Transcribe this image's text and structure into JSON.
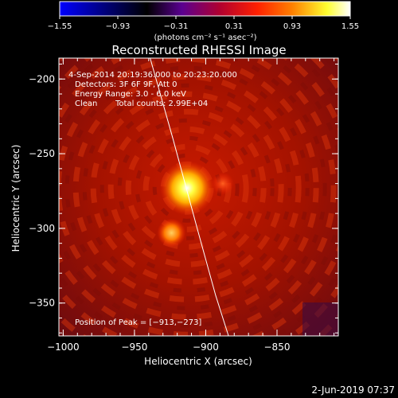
{
  "chart_data": {
    "type": "heatmap",
    "title": "Reconstructed RHESSI Image",
    "xlabel": "Heliocentric X (arcsec)",
    "ylabel": "Heliocentric Y (arcsec)",
    "xlim": [
      -1003,
      -807
    ],
    "ylim": [
      -372,
      -186
    ],
    "x_ticks": [
      -1000,
      -950,
      -900,
      -850
    ],
    "y_ticks": [
      -200,
      -250,
      -300,
      -350
    ],
    "x_tick_labels": [
      "−1000",
      "−950",
      "−900",
      "−850"
    ],
    "y_tick_labels": [
      "−200",
      "−250",
      "−300",
      "−350"
    ],
    "colorbar": {
      "range": [
        -1.55,
        1.55
      ],
      "ticks": [
        -1.55,
        -0.93,
        -0.31,
        0.31,
        0.93,
        1.55
      ],
      "tick_labels": [
        "−1.55",
        "−0.93",
        "−0.31",
        "0.31",
        "0.93",
        "1.55"
      ],
      "units_label": "(photons cm⁻² s⁻¹ asec⁻²)",
      "colormap": [
        "#0000ff",
        "#000000",
        "#5a0090",
        "#b00030",
        "#ff2000",
        "#ff8000",
        "#ffff30",
        "#ffffff"
      ]
    },
    "sources": [
      {
        "x": -913,
        "y": -273,
        "peak": 1.55
      },
      {
        "x": -924,
        "y": -303,
        "peak": 0.95
      },
      {
        "x": -888,
        "y": -270,
        "peak": 0.45
      }
    ],
    "limb_curve": [
      [
        -939,
        -186
      ],
      [
        -923,
        -240
      ],
      [
        -906,
        -300
      ],
      [
        -893,
        -345
      ],
      [
        -884,
        -372
      ]
    ],
    "annotations": {
      "time_range": "4-Sep-2014 20:19:36.000 to 20:23:20.000",
      "detectors": "Detectors: 3F 6F 9F, Att 0",
      "energy": "Energy Range: 3.0 - 6.0 keV",
      "clean": "Clean",
      "total_counts": "Total counts: 2.99E+04",
      "peak_position": "Position of Peak = [−913,−273]"
    },
    "footer_date": "2-Jun-2019 07:37"
  }
}
